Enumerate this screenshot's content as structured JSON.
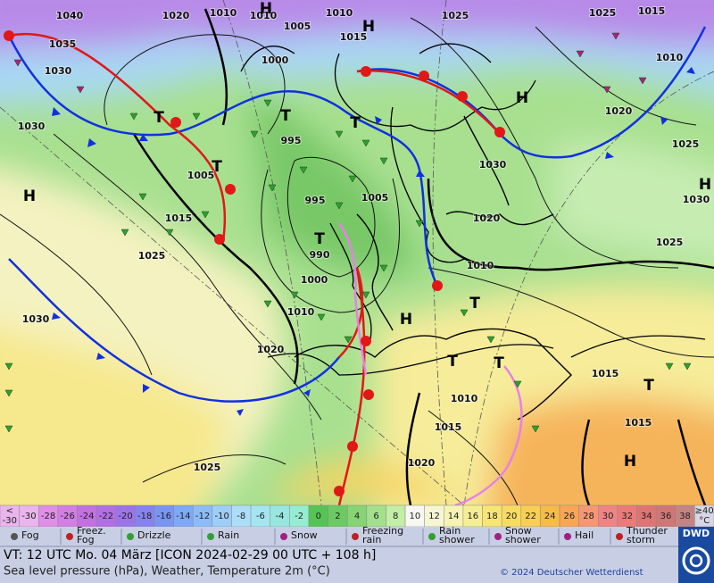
{
  "map": {
    "isobar_labels": [
      "1040",
      "1020",
      "1010",
      "1010",
      "1005",
      "1010",
      "1025",
      "1025",
      "1015",
      "1035",
      "1030",
      "1000",
      "1015",
      "1010",
      "1020",
      "1030",
      "1025",
      "995",
      "1030",
      "1005",
      "995",
      "1005",
      "1030",
      "1015",
      "1020",
      "1025",
      "1025",
      "990",
      "1000",
      "1010",
      "1010",
      "1030",
      "1020",
      "1015",
      "1010",
      "1015",
      "1015",
      "1020",
      "1025"
    ],
    "pressure_centers": [
      "H",
      "H",
      "H",
      "T",
      "T",
      "T",
      "T",
      "H",
      "H",
      "T",
      "H",
      "T",
      "T",
      "T",
      "T",
      "H"
    ]
  },
  "scale": {
    "first": {
      "top": "<",
      "bottom": "-30"
    },
    "cells": [
      "-30",
      "-28",
      "-26",
      "-24",
      "-22",
      "-20",
      "-18",
      "-16",
      "-14",
      "-12",
      "-10",
      "-8",
      "-6",
      "-4",
      "-2",
      "0",
      "2",
      "4",
      "6",
      "8",
      "10",
      "12",
      "14",
      "16",
      "18",
      "20",
      "22",
      "24",
      "26",
      "28",
      "30",
      "32",
      "34",
      "36",
      "38"
    ],
    "colors": [
      "#eab4ee",
      "#e08ee8",
      "#d27ee4",
      "#c470e2",
      "#b26ee4",
      "#9c74ea",
      "#8682f0",
      "#7a94f4",
      "#7ea8f8",
      "#8cbcf8",
      "#9ccef8",
      "#acdef8",
      "#a4e6f0",
      "#98e6e0",
      "#96ecd0",
      "#56c454",
      "#6cca62",
      "#86d474",
      "#a2e08e",
      "#c2eea6",
      "#f8f8f2",
      "#f6f6d2",
      "#f6f4b4",
      "#f6ee94",
      "#f8e674",
      "#f8dc62",
      "#f8ce54",
      "#f8bc46",
      "#f8a656",
      "#f69672",
      "#f08484",
      "#ec7a7a",
      "#e07474",
      "#d07676",
      "#c48484"
    ],
    "last": {
      "top": "≥40",
      "bottom": "°C"
    },
    "last_color": "#d6d6e6"
  },
  "legend": [
    {
      "label": [
        "Fog"
      ]
    },
    {
      "label": [
        "Freez.",
        "Fog"
      ]
    },
    {
      "label": [
        "Drizzle"
      ]
    },
    {
      "label": [
        "Rain"
      ]
    },
    {
      "label": [
        "Snow"
      ]
    },
    {
      "label": [
        "Freezing",
        "rain"
      ]
    },
    {
      "label": [
        "Rain",
        "shower"
      ]
    },
    {
      "label": [
        "Snow",
        "shower"
      ]
    },
    {
      "label": [
        "Hail"
      ]
    },
    {
      "label": [
        "Thunder",
        "storm"
      ]
    }
  ],
  "footer": {
    "valid_time": "VT: 12 UTC Mo.  04 März [ICON 2024-02-29  00 UTC + 108 h]",
    "description": "Sea level pressure (hPa), Weather, Temperature 2m (°C)",
    "copyright": "© 2024 Deutscher Wetterdienst",
    "logo": "DWD"
  }
}
